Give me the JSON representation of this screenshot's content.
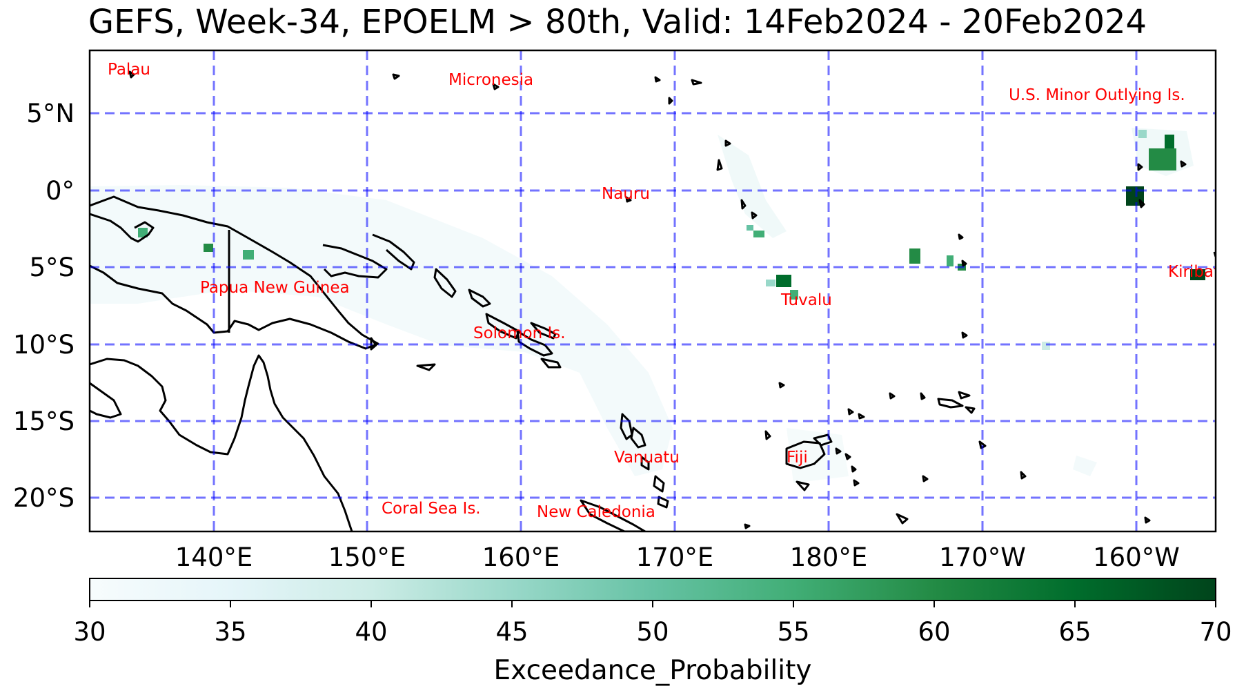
{
  "map": {
    "title": "GEFS, Week-34, EPOELM > 80th, Valid: 14Feb2024 - 20Feb2024",
    "lat_labels": [
      "5°N",
      "0°",
      "5°S",
      "10°S",
      "15°S",
      "20°S"
    ],
    "lon_labels": [
      "140°E",
      "150°E",
      "160°E",
      "170°E",
      "180°E",
      "170°W",
      "160°W"
    ],
    "places": [
      {
        "id": "palau",
        "name": "Palau"
      },
      {
        "id": "micronesia",
        "name": "Micronesia"
      },
      {
        "id": "us-minor",
        "name": "U.S. Minor Outlying Is."
      },
      {
        "id": "nauru",
        "name": "Nauru"
      },
      {
        "id": "kiribati",
        "name": "Kiribati"
      },
      {
        "id": "png",
        "name": "Papua New Guinea"
      },
      {
        "id": "tuvalu",
        "name": "Tuvalu"
      },
      {
        "id": "solomon",
        "name": "Solomon Is."
      },
      {
        "id": "vanuatu",
        "name": "Vanuatu"
      },
      {
        "id": "fiji",
        "name": "Fiji"
      },
      {
        "id": "coral-sea",
        "name": "Coral Sea Is."
      },
      {
        "id": "new-caledonia",
        "name": "New Caledonia"
      }
    ],
    "gridline_color": "#0000ff",
    "coastline_color": "#000000",
    "label_color": "#ff0000",
    "colorbar": {
      "label": "Exceedance_Probability",
      "ticks": [
        "30",
        "35",
        "40",
        "45",
        "50",
        "55",
        "60",
        "65",
        "70"
      ],
      "colors": [
        "#f7fcfd",
        "#e5f5f9",
        "#ccece6",
        "#99d8c9",
        "#66c2a4",
        "#41ae76",
        "#238b45",
        "#006d2c",
        "#00441b"
      ]
    }
  }
}
